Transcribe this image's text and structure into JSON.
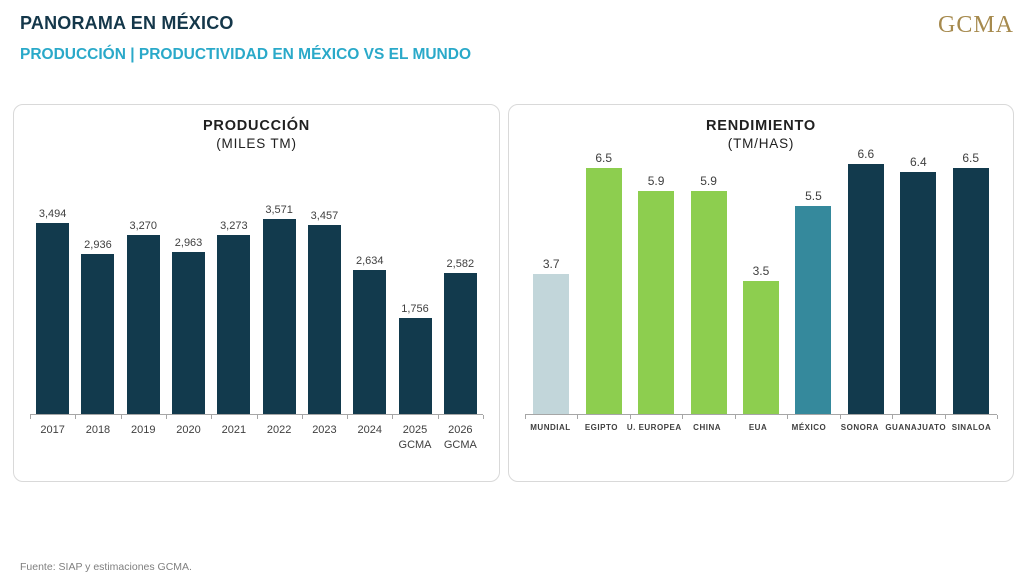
{
  "header": {
    "title": "PANORAMA EN MÉXICO",
    "subtitle": "PRODUCCIÓN | PRODUCTIVIDAD EN MÉXICO VS EL MUNDO",
    "logo": "GCMA"
  },
  "footer": {
    "source": "Fuente: SIAP y estimaciones GCMA."
  },
  "colors": {
    "dark": "#123a4d",
    "green": "#8dce4f",
    "teal": "#35899c",
    "light": "#c2d6da",
    "accent_cyan": "#2aa9c9",
    "title_navy": "#14374a",
    "gold": "#a68a4e",
    "axis_gray": "#a6a6a6",
    "label_gray": "#404040"
  },
  "chart_data": [
    {
      "type": "bar",
      "title": "PRODUCCIÓN",
      "subtitle": "(MILES TM)",
      "categories": [
        "2017",
        "2018",
        "2019",
        "2020",
        "2021",
        "2022",
        "2023",
        "2024",
        "2025\nGCMA",
        "2026\nGCMA"
      ],
      "values": [
        3494,
        2936,
        3270,
        2963,
        3273,
        3571,
        3457,
        2634,
        1756,
        2582
      ],
      "labels": [
        "3,494",
        "2,936",
        "3,270",
        "2,963",
        "3,273",
        "3,571",
        "3,457",
        "2,634",
        "1,756",
        "2,582"
      ],
      "bar_color": "dark",
      "xlabel": "",
      "ylabel": "",
      "ylim": [
        0,
        3800
      ],
      "grid": false,
      "legend": false
    },
    {
      "type": "bar",
      "title": "RENDIMIENTO",
      "subtitle": "(TM/HAS)",
      "categories": [
        "MUNDIAL",
        "EGIPTO",
        "U. EUROPEA",
        "CHINA",
        "EUA",
        "MÉXICO",
        "SONORA",
        "GUANAJUATO",
        "SINALOA"
      ],
      "values": [
        3.7,
        6.5,
        5.9,
        5.9,
        3.5,
        5.5,
        6.6,
        6.4,
        6.5
      ],
      "labels": [
        "3.7",
        "6.5",
        "5.9",
        "5.9",
        "3.5",
        "5.5",
        "6.6",
        "6.4",
        "6.5"
      ],
      "bar_colors": [
        "light",
        "green",
        "green",
        "green",
        "green",
        "teal",
        "dark",
        "dark",
        "dark"
      ],
      "xlabel": "",
      "ylabel": "",
      "ylim": [
        0,
        7
      ],
      "grid": false,
      "legend": false
    }
  ]
}
